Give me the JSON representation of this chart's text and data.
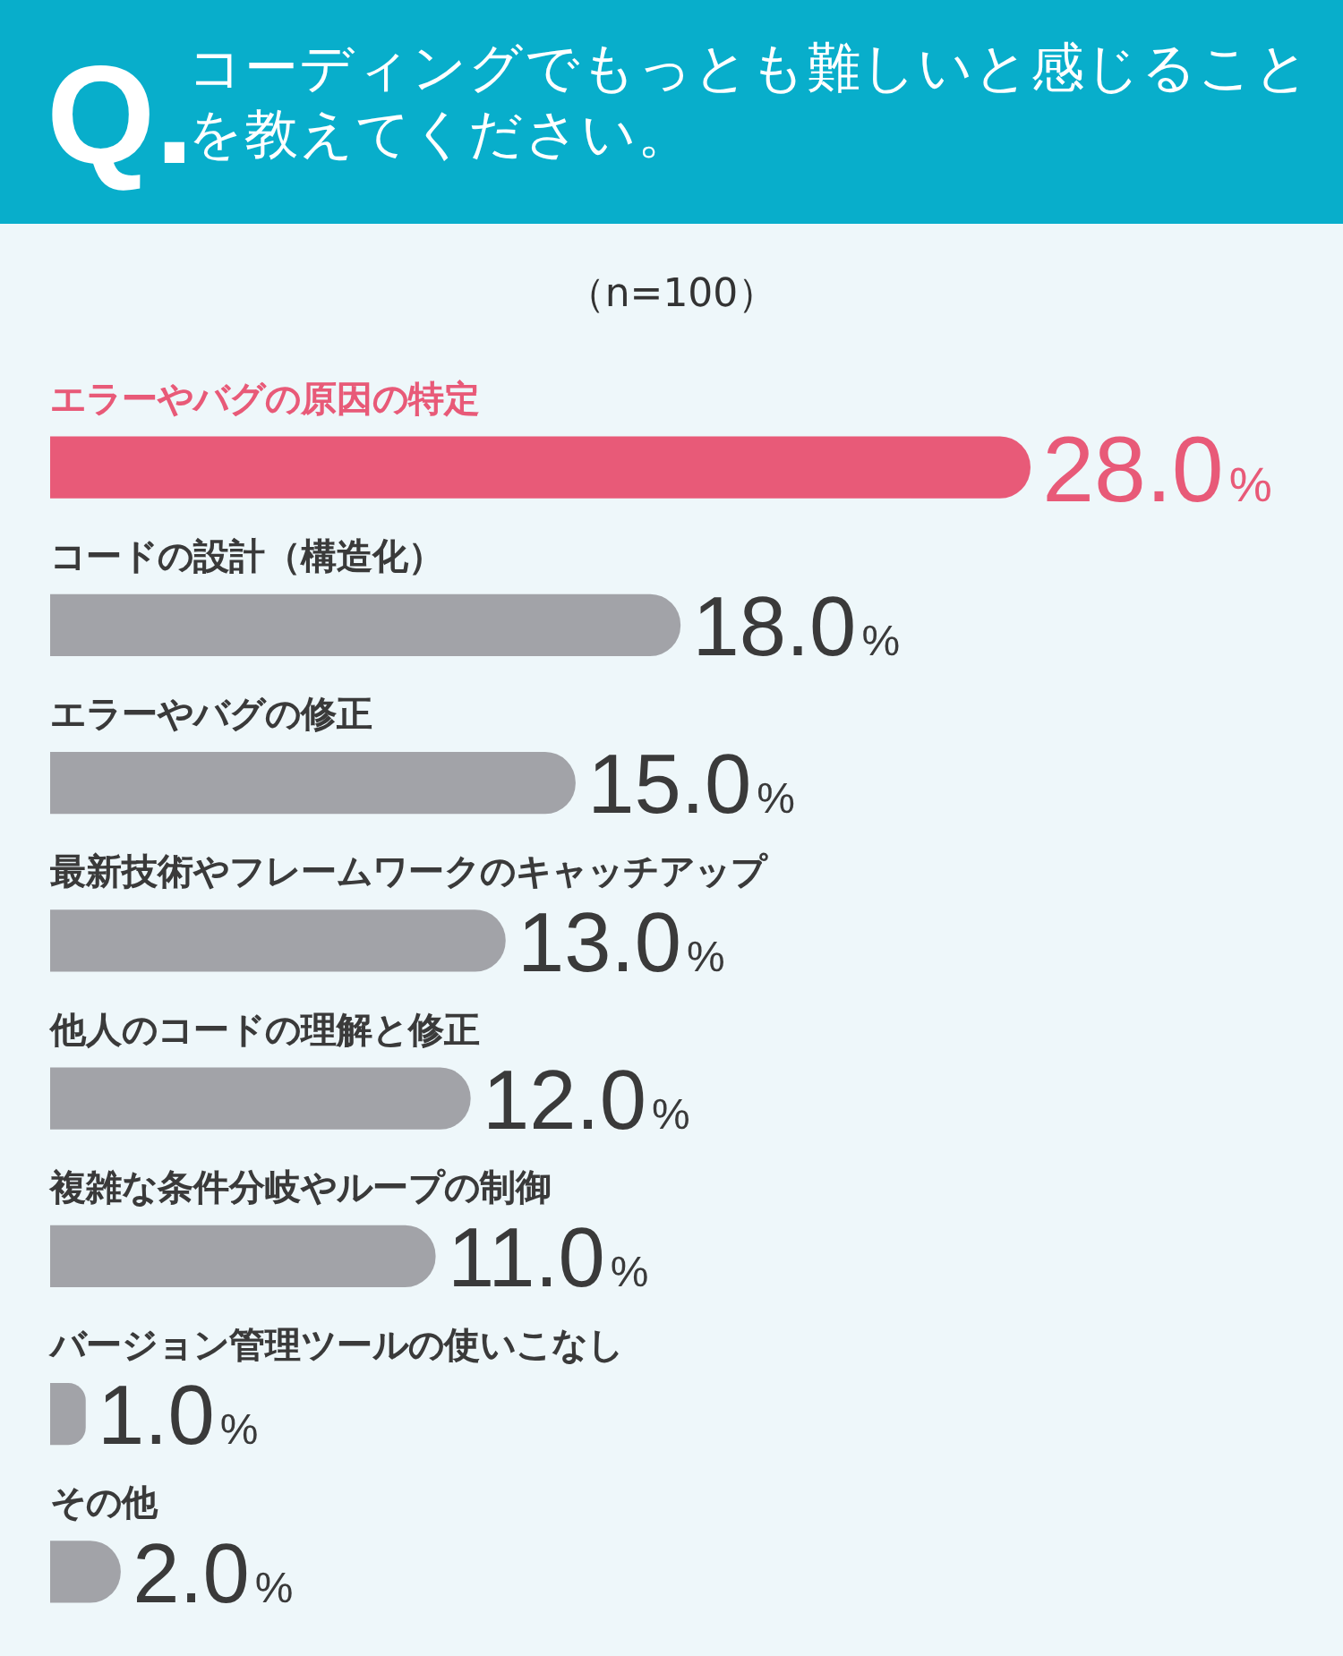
{
  "chart_data": {
    "type": "bar",
    "orientation": "horizontal",
    "title": "コーディングでもっとも難しいと感じることを教えてください。",
    "subtitle": "（n=100）",
    "annotations": [
      "Q."
    ],
    "categories": [
      "エラーやバグの原因の特定",
      "コードの設計（構造化）",
      "エラーやバグの修正",
      "最新技術やフレームワークのキャッチアップ",
      "他人のコードの理解と修正",
      "複雑な条件分岐やループの制御",
      "バージョン管理ツールの使いこなし",
      "その他"
    ],
    "values": [
      28.0,
      18.0,
      15.0,
      13.0,
      12.0,
      11.0,
      1.0,
      2.0
    ],
    "colors": [
      "#e85a78",
      "#a2a3a8",
      "#a2a3a8",
      "#a2a3a8",
      "#a2a3a8",
      "#a2a3a8",
      "#a2a3a8",
      "#a2a3a8"
    ],
    "value_labels": [
      "28.0%",
      "18.0%",
      "15.0%",
      "13.0%",
      "12.0%",
      "11.0%",
      "1.0%",
      "2.0%"
    ]
  }
}
